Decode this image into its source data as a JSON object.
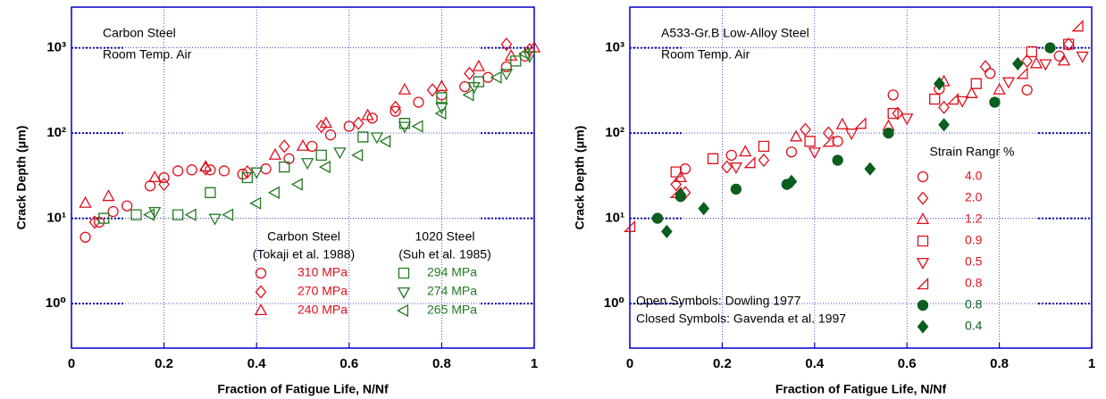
{
  "chart_data": [
    {
      "type": "scatter",
      "title": "Carbon Steel",
      "subtitle": "Room Temp. Air",
      "xlabel": "Fraction of Fatigue Life, N/Nf",
      "ylabel": "Crack Depth (μm)",
      "xlim": [
        0,
        1
      ],
      "ylim": [
        0.3,
        3000
      ],
      "log_y": true,
      "grid": true,
      "xticks": [
        0,
        0.2,
        0.4,
        0.6,
        0.8,
        1
      ],
      "yticks": [
        {
          "value": 1,
          "label": "10⁰"
        },
        {
          "value": 10,
          "label": "10¹"
        },
        {
          "value": 100,
          "label": "10²"
        },
        {
          "value": 1000,
          "label": "10³"
        }
      ],
      "legend_headers": [
        "Carbon Steel",
        "(Tokaji et al. 1988)",
        "1020 Steel",
        "(Suh et al. 1985)"
      ],
      "series": [
        {
          "name": "310 MPa",
          "color": "#e0101c",
          "marker": "circle",
          "filled": false,
          "x": [
            0.03,
            0.06,
            0.09,
            0.12,
            0.17,
            0.2,
            0.23,
            0.26,
            0.3,
            0.33,
            0.37,
            0.42,
            0.47,
            0.52,
            0.56,
            0.6,
            0.65,
            0.7,
            0.75,
            0.8,
            0.85,
            0.9,
            0.94,
            0.98
          ],
          "values": [
            6,
            9,
            12,
            14,
            24,
            30,
            36,
            37,
            37,
            36,
            33,
            38,
            50,
            70,
            95,
            120,
            150,
            180,
            230,
            280,
            350,
            450,
            600,
            800
          ]
        },
        {
          "name": "270 MPa",
          "color": "#e0101c",
          "marker": "diamond",
          "filled": false,
          "x": [
            0.05,
            0.2,
            0.29,
            0.38,
            0.46,
            0.54,
            0.62,
            0.7,
            0.78,
            0.86,
            0.94,
            0.99
          ],
          "values": [
            9,
            25,
            38,
            35,
            70,
            120,
            130,
            200,
            320,
            500,
            1100,
            950
          ]
        },
        {
          "name": "240 MPa",
          "color": "#e0101c",
          "marker": "triangle-up",
          "filled": false,
          "x": [
            0.03,
            0.08,
            0.18,
            0.29,
            0.44,
            0.5,
            0.55,
            0.64,
            0.72,
            0.8,
            0.88,
            0.95,
            1.0
          ],
          "values": [
            15,
            18,
            30,
            40,
            55,
            70,
            130,
            160,
            320,
            350,
            600,
            800,
            1000
          ]
        },
        {
          "name": "294 MPa",
          "color": "#237a23",
          "marker": "square",
          "filled": false,
          "x": [
            0.07,
            0.14,
            0.23,
            0.3,
            0.38,
            0.46,
            0.54,
            0.63,
            0.72,
            0.8,
            0.88,
            0.96
          ],
          "values": [
            10,
            11,
            11,
            20,
            30,
            40,
            55,
            90,
            130,
            260,
            400,
            700
          ]
        },
        {
          "name": "274 MPa",
          "color": "#237a23",
          "marker": "triangle-down",
          "filled": false,
          "x": [
            0.18,
            0.31,
            0.4,
            0.51,
            0.58,
            0.66,
            0.72,
            0.8,
            0.87,
            0.94,
            0.99
          ],
          "values": [
            12,
            10,
            35,
            45,
            60,
            90,
            120,
            200,
            350,
            500,
            800
          ]
        },
        {
          "name": "265 MPa",
          "color": "#237a23",
          "marker": "triangle-left",
          "filled": false,
          "x": [
            0.17,
            0.26,
            0.34,
            0.4,
            0.44,
            0.49,
            0.55,
            0.62,
            0.68,
            0.75,
            0.8,
            0.86,
            0.92,
            0.98
          ],
          "values": [
            11,
            11,
            11,
            15,
            20,
            25,
            40,
            55,
            80,
            120,
            170,
            280,
            450,
            850
          ]
        }
      ]
    },
    {
      "type": "scatter",
      "title": "A533-Gr.B Low-Alloy Steel",
      "subtitle": "Room Temp. Air",
      "xlabel": "Fraction of Fatigue Life, N/Nf",
      "ylabel": "Crack Depth (μm)",
      "xlim": [
        0,
        1
      ],
      "ylim": [
        0.3,
        3000
      ],
      "log_y": true,
      "grid": true,
      "xticks": [
        0,
        0.2,
        0.4,
        0.6,
        0.8,
        1
      ],
      "yticks": [
        {
          "value": 1,
          "label": "10⁰"
        },
        {
          "value": 10,
          "label": "10¹"
        },
        {
          "value": 100,
          "label": "10²"
        },
        {
          "value": 1000,
          "label": "10³"
        }
      ],
      "legend_title": "Strain Rangr %",
      "annotations": [
        "Open Symbols: Dowling 1977",
        "Closed Symbols: Gavenda et al. 1997"
      ],
      "series": [
        {
          "name": "4.0",
          "color": "#e0101c",
          "marker": "circle",
          "filled": false,
          "x": [
            0.12,
            0.22,
            0.35,
            0.45,
            0.57,
            0.67,
            0.78,
            0.86,
            0.93
          ],
          "values": [
            38,
            55,
            60,
            80,
            280,
            330,
            500,
            320,
            800
          ]
        },
        {
          "name": "2.0",
          "color": "#e0101c",
          "marker": "diamond",
          "filled": false,
          "x": [
            0.1,
            0.12,
            0.21,
            0.29,
            0.38,
            0.43,
            0.58,
            0.68,
            0.77,
            0.86,
            0.95
          ],
          "values": [
            25,
            20,
            40,
            48,
            110,
            100,
            170,
            200,
            600,
            700,
            1100
          ]
        },
        {
          "name": "1.2",
          "color": "#e0101c",
          "marker": "triangle-up",
          "filled": false,
          "x": [
            0.11,
            0.25,
            0.36,
            0.46,
            0.56,
            0.68,
            0.74,
            0.8,
            0.88,
            0.94
          ],
          "values": [
            30,
            60,
            90,
            125,
            120,
            400,
            290,
            320,
            650,
            700
          ]
        },
        {
          "name": "0.9",
          "color": "#e0101c",
          "marker": "square",
          "filled": false,
          "x": [
            0.1,
            0.18,
            0.29,
            0.39,
            0.57,
            0.66,
            0.75,
            0.87,
            0.95
          ],
          "values": [
            35,
            50,
            70,
            80,
            170,
            250,
            380,
            900,
            1100
          ]
        },
        {
          "name": "0.5",
          "color": "#e0101c",
          "marker": "triangle-down",
          "filled": false,
          "x": [
            0.23,
            0.4,
            0.48,
            0.6,
            0.72,
            0.82,
            0.9,
            0.98
          ],
          "values": [
            40,
            60,
            100,
            150,
            240,
            400,
            650,
            800
          ]
        },
        {
          "name": "0.8",
          "color": "#e0101c",
          "marker": "corner",
          "filled": false,
          "x": [
            0.0,
            0.1,
            0.26,
            0.43,
            0.5,
            0.7,
            0.85,
            0.97
          ],
          "values": [
            8,
            20,
            45,
            80,
            130,
            250,
            500,
            1800
          ]
        },
        {
          "name": "0.8",
          "color": "#0b5e1e",
          "marker": "circle",
          "filled": true,
          "x": [
            0.06,
            0.11,
            0.23,
            0.34,
            0.45,
            0.56,
            0.79,
            0.91
          ],
          "values": [
            10,
            18,
            22,
            25,
            48,
            100,
            230,
            1000
          ]
        },
        {
          "name": "0.4",
          "color": "#0b5e1e",
          "marker": "diamond",
          "filled": true,
          "x": [
            0.08,
            0.11,
            0.16,
            0.35,
            0.52,
            0.67,
            0.68,
            0.84
          ],
          "values": [
            7,
            19,
            13,
            27,
            38,
            380,
            125,
            650
          ]
        }
      ]
    }
  ]
}
